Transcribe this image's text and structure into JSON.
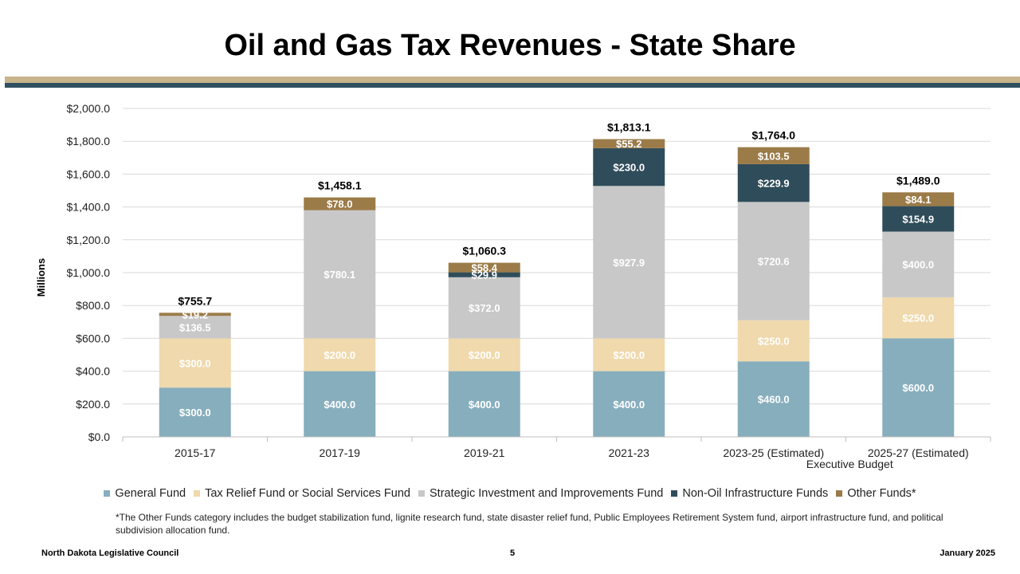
{
  "title": "Oil and Gas Tax Revenues - State Share",
  "footer": {
    "left": "North Dakota Legislative Council",
    "page": "5",
    "right": "January 2025"
  },
  "footnote": "*The Other Funds category includes the budget stabilization fund, lignite research fund, state disaster relief fund, Public Employees Retirement System fund, airport infrastructure fund, and political subdivision allocation fund.",
  "chart_data": {
    "type": "bar",
    "stacked": true,
    "ylabel": "Millions",
    "ylim": [
      0,
      2000
    ],
    "ytick_labels": [
      "$0.0",
      "$200.0",
      "$400.0",
      "$600.0",
      "$800.0",
      "$1,000.0",
      "$1,200.0",
      "$1,400.0",
      "$1,600.0",
      "$1,800.0",
      "$2,000.0"
    ],
    "categories": [
      "2015-17",
      "2017-19",
      "2019-21",
      "2021-23",
      "2023-25 (Estimated)",
      "2025-27 (Estimated)"
    ],
    "category_sublabels": [
      "",
      "",
      "",
      "",
      "",
      "Executive Budget"
    ],
    "totals": [
      755.7,
      1458.1,
      1060.3,
      1813.1,
      1764.0,
      1489.0
    ],
    "total_labels": [
      "$755.7",
      "$1,458.1",
      "$1,060.3",
      "$1,813.1",
      "$1,764.0",
      "$1,489.0"
    ],
    "series": [
      {
        "name": "General Fund",
        "color": "#87aebd",
        "values": [
          300.0,
          400.0,
          400.0,
          400.0,
          460.0,
          600.0
        ],
        "labels": [
          "$300.0",
          "$400.0",
          "$400.0",
          "$400.0",
          "$460.0",
          "$600.0"
        ]
      },
      {
        "name": "Tax Relief Fund or Social Services Fund",
        "color": "#efd9ad",
        "values": [
          300.0,
          200.0,
          200.0,
          200.0,
          250.0,
          250.0
        ],
        "labels": [
          "$300.0",
          "$200.0",
          "$200.0",
          "$200.0",
          "$250.0",
          "$250.0"
        ]
      },
      {
        "name": "Strategic Investment and Improvements Fund",
        "color": "#c8c8c8",
        "values": [
          136.5,
          780.1,
          372.0,
          927.9,
          720.6,
          400.0
        ],
        "labels": [
          "$136.5",
          "$780.1",
          "$372.0",
          "$927.9",
          "$720.6",
          "$400.0"
        ]
      },
      {
        "name": "Non-Oil Infrastructure Funds",
        "color": "#2f4c5a",
        "values": [
          0,
          0,
          29.9,
          230.0,
          229.9,
          154.9
        ],
        "labels": [
          "",
          "",
          "$29.9",
          "$230.0",
          "$229.9",
          "$154.9"
        ]
      },
      {
        "name": "Other Funds*",
        "color": "#9b7b48",
        "values": [
          19.2,
          78.0,
          58.4,
          55.2,
          103.5,
          84.1
        ],
        "labels": [
          "$19.2",
          "$78.0",
          "$58.4",
          "$55.2",
          "$103.5",
          "$84.1"
        ]
      }
    ]
  }
}
